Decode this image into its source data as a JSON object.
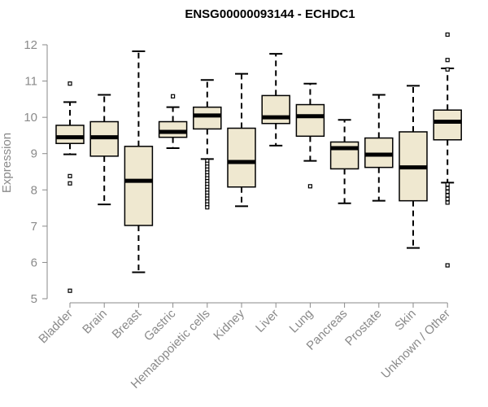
{
  "chart_data": {
    "type": "boxplot",
    "title": "ENSG00000093144 - ECHDC1",
    "ylabel": "Expression",
    "xlabel": "",
    "ylim": [
      5,
      12.2
    ],
    "yticks": [
      5,
      6,
      7,
      8,
      9,
      10,
      11,
      12
    ],
    "box_color": "#efe8d0",
    "categories": [
      "Bladder",
      "Brain",
      "Breast",
      "Gastric",
      "Hematopoietic cells",
      "Kidney",
      "Liver",
      "Lung",
      "Pancreas",
      "Prostate",
      "Skin",
      "Unknown / Other"
    ],
    "boxes": [
      {
        "whisker_low": 8.98,
        "q1": 9.28,
        "median": 9.45,
        "q3": 9.78,
        "whisker_high": 10.42,
        "outliers": [
          10.93,
          8.38,
          8.18,
          5.22
        ]
      },
      {
        "whisker_low": 7.6,
        "q1": 8.93,
        "median": 9.45,
        "q3": 9.88,
        "whisker_high": 10.62,
        "outliers": []
      },
      {
        "whisker_low": 5.73,
        "q1": 7.02,
        "median": 8.25,
        "q3": 9.2,
        "whisker_high": 11.82,
        "outliers": []
      },
      {
        "whisker_low": 9.15,
        "q1": 9.45,
        "median": 9.6,
        "q3": 9.88,
        "whisker_high": 10.28,
        "outliers": [
          10.58
        ]
      },
      {
        "whisker_low": 8.85,
        "q1": 9.68,
        "median": 10.05,
        "q3": 10.28,
        "whisker_high": 11.03,
        "outliers": [
          8.8,
          8.72,
          8.64,
          8.56,
          8.48,
          8.4,
          8.32,
          8.24,
          8.16,
          8.08,
          8.0,
          7.92,
          7.84,
          7.76,
          7.68,
          7.6,
          7.52
        ]
      },
      {
        "whisker_low": 7.55,
        "q1": 8.08,
        "median": 8.77,
        "q3": 9.7,
        "whisker_high": 11.2,
        "outliers": []
      },
      {
        "whisker_low": 9.22,
        "q1": 9.83,
        "median": 10.0,
        "q3": 10.6,
        "whisker_high": 11.75,
        "outliers": []
      },
      {
        "whisker_low": 8.8,
        "q1": 9.48,
        "median": 10.03,
        "q3": 10.35,
        "whisker_high": 10.93,
        "outliers": [
          8.1
        ]
      },
      {
        "whisker_low": 7.63,
        "q1": 8.58,
        "median": 9.15,
        "q3": 9.32,
        "whisker_high": 9.93,
        "outliers": []
      },
      {
        "whisker_low": 7.7,
        "q1": 8.62,
        "median": 8.97,
        "q3": 9.43,
        "whisker_high": 10.62,
        "outliers": []
      },
      {
        "whisker_low": 6.4,
        "q1": 7.7,
        "median": 8.62,
        "q3": 9.6,
        "whisker_high": 10.87,
        "outliers": []
      },
      {
        "whisker_low": 8.2,
        "q1": 9.38,
        "median": 9.88,
        "q3": 10.2,
        "whisker_high": 11.35,
        "outliers": [
          12.28,
          11.58,
          11.32,
          8.15,
          8.05,
          7.95,
          7.85,
          7.75,
          7.65,
          5.92
        ]
      }
    ]
  }
}
